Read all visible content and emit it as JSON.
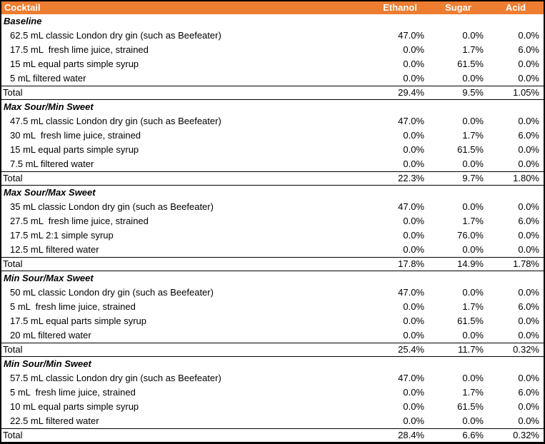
{
  "colors": {
    "header_bg": "#ED7D31",
    "header_text": "#FFFFFF",
    "border": "#000000"
  },
  "table": {
    "header": {
      "cocktail": "Cocktail",
      "ethanol": "Ethanol",
      "sugar": "Sugar",
      "acid": "Acid"
    },
    "total_label": "Total",
    "sections": [
      {
        "title": "Baseline",
        "rows": [
          {
            "label": "62.5 mL classic London dry gin (such as Beefeater)",
            "ethanol": "47.0%",
            "sugar": "0.0%",
            "acid": "0.0%"
          },
          {
            "label": "17.5 mL  fresh lime juice, strained",
            "ethanol": "0.0%",
            "sugar": "1.7%",
            "acid": "6.0%"
          },
          {
            "label": "15 mL equal parts simple syrup",
            "ethanol": "0.0%",
            "sugar": "61.5%",
            "acid": "0.0%"
          },
          {
            "label": "5 mL filtered water",
            "ethanol": "0.0%",
            "sugar": "0.0%",
            "acid": "0.0%"
          }
        ],
        "total": {
          "ethanol": "29.4%",
          "sugar": "9.5%",
          "acid": "1.05%"
        }
      },
      {
        "title": "Max Sour/Min Sweet",
        "rows": [
          {
            "label": "47.5 mL classic London dry gin (such as Beefeater)",
            "ethanol": "47.0%",
            "sugar": "0.0%",
            "acid": "0.0%"
          },
          {
            "label": "30 mL  fresh lime juice, strained",
            "ethanol": "0.0%",
            "sugar": "1.7%",
            "acid": "6.0%"
          },
          {
            "label": "15 mL equal parts simple syrup",
            "ethanol": "0.0%",
            "sugar": "61.5%",
            "acid": "0.0%"
          },
          {
            "label": "7.5 mL filtered water",
            "ethanol": "0.0%",
            "sugar": "0.0%",
            "acid": "0.0%"
          }
        ],
        "total": {
          "ethanol": "22.3%",
          "sugar": "9.7%",
          "acid": "1.80%"
        }
      },
      {
        "title": "Max Sour/Max Sweet",
        "rows": [
          {
            "label": "35 mL classic London dry gin (such as Beefeater)",
            "ethanol": "47.0%",
            "sugar": "0.0%",
            "acid": "0.0%"
          },
          {
            "label": "27.5 mL  fresh lime juice, strained",
            "ethanol": "0.0%",
            "sugar": "1.7%",
            "acid": "6.0%"
          },
          {
            "label": "17.5 mL 2:1 simple syrup",
            "ethanol": "0.0%",
            "sugar": "76.0%",
            "acid": "0.0%"
          },
          {
            "label": "12.5 mL filtered water",
            "ethanol": "0.0%",
            "sugar": "0.0%",
            "acid": "0.0%"
          }
        ],
        "total": {
          "ethanol": "17.8%",
          "sugar": "14.9%",
          "acid": "1.78%"
        }
      },
      {
        "title": "Min Sour/Max Sweet",
        "rows": [
          {
            "label": "50 mL classic London dry gin (such as Beefeater)",
            "ethanol": "47.0%",
            "sugar": "0.0%",
            "acid": "0.0%"
          },
          {
            "label": "5 mL  fresh lime juice, strained",
            "ethanol": "0.0%",
            "sugar": "1.7%",
            "acid": "6.0%"
          },
          {
            "label": "17.5 mL equal parts simple syrup",
            "ethanol": "0.0%",
            "sugar": "61.5%",
            "acid": "0.0%"
          },
          {
            "label": "20 mL filtered water",
            "ethanol": "0.0%",
            "sugar": "0.0%",
            "acid": "0.0%"
          }
        ],
        "total": {
          "ethanol": "25.4%",
          "sugar": "11.7%",
          "acid": "0.32%"
        }
      },
      {
        "title": "Min Sour/Min Sweet",
        "rows": [
          {
            "label": "57.5 mL classic London dry gin (such as Beefeater)",
            "ethanol": "47.0%",
            "sugar": "0.0%",
            "acid": "0.0%"
          },
          {
            "label": "5 mL  fresh lime juice, strained",
            "ethanol": "0.0%",
            "sugar": "1.7%",
            "acid": "6.0%"
          },
          {
            "label": "10 mL equal parts simple syrup",
            "ethanol": "0.0%",
            "sugar": "61.5%",
            "acid": "0.0%"
          },
          {
            "label": "22.5 mL filtered water",
            "ethanol": "0.0%",
            "sugar": "0.0%",
            "acid": "0.0%"
          }
        ],
        "total": {
          "ethanol": "28.4%",
          "sugar": "6.6%",
          "acid": "0.32%"
        }
      }
    ]
  }
}
